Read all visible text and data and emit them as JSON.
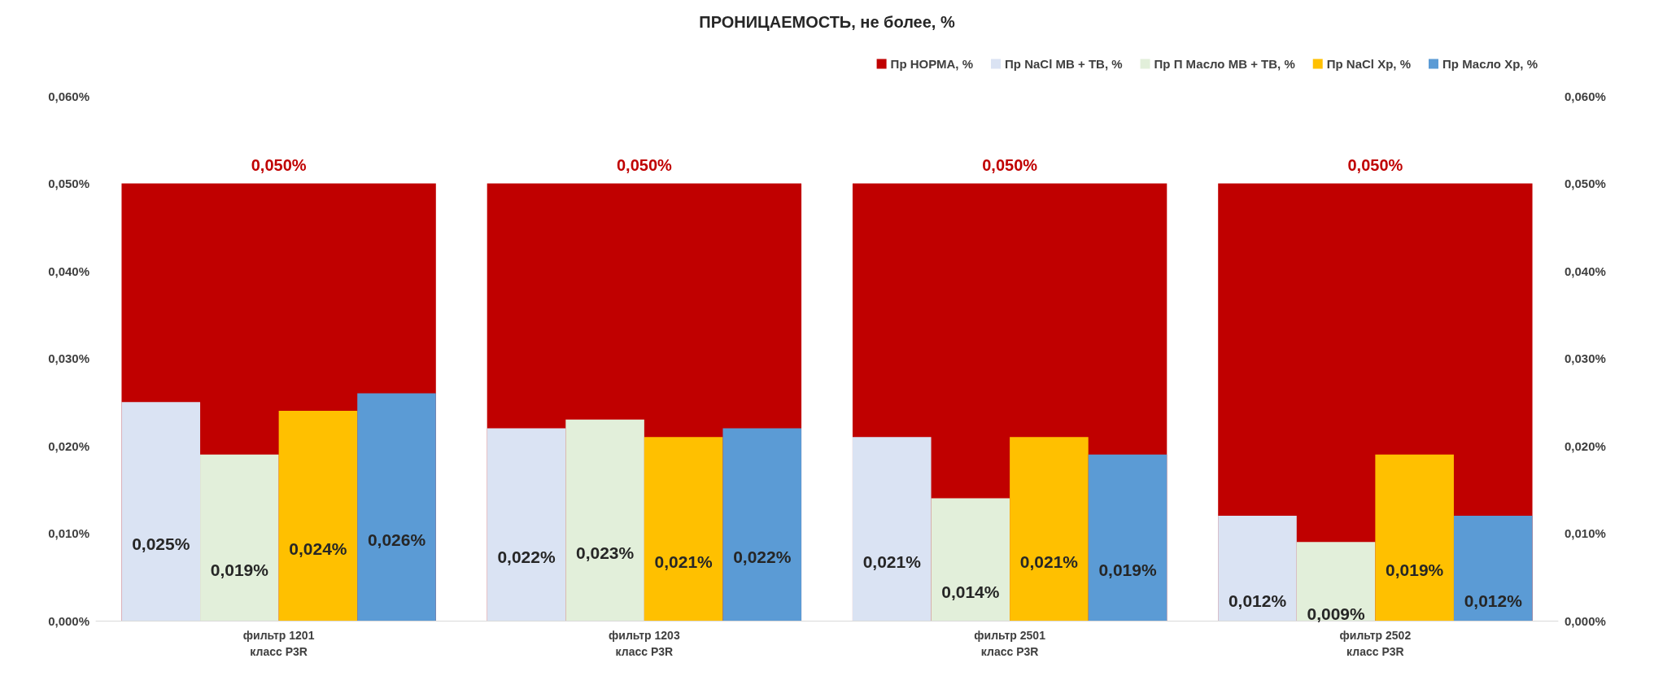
{
  "chart_data": {
    "type": "bar",
    "title": "ПРОНИЦАЕМОСТЬ, не более, %",
    "categories": [
      "фильтр 1201\nкласс P3R",
      "фильтр 1203\nкласс P3R",
      "фильтр 2501\nкласс P3R",
      "фильтр 2502\nкласс P3R"
    ],
    "series": [
      {
        "name": "Пр НОРМА, %",
        "color": "#c00000",
        "axis": "y2",
        "values": [
          0.05,
          0.05,
          0.05,
          0.05
        ],
        "value_labels": [
          "0,050%",
          "0,050%",
          "0,050%",
          "0,050%"
        ]
      },
      {
        "name": "Пр NaCl МВ + ТВ, %",
        "color": "#dae3f3",
        "values": [
          0.025,
          0.022,
          0.021,
          0.012
        ],
        "value_labels": [
          "0,025%",
          "0,022%",
          "0,021%",
          "0,012%"
        ]
      },
      {
        "name": "Пр П Масло МВ + ТВ, %",
        "color": "#e2efda",
        "values": [
          0.019,
          0.023,
          0.014,
          0.009
        ],
        "value_labels": [
          "0,019%",
          "0,023%",
          "0,014%",
          "0,009%"
        ]
      },
      {
        "name": "Пр NaCl Хр, %",
        "color": "#ffc000",
        "values": [
          0.024,
          0.021,
          0.021,
          0.019
        ],
        "value_labels": [
          "0,024%",
          "0,021%",
          "0,021%",
          "0,019%"
        ]
      },
      {
        "name": "Пр Масло Хр, %",
        "color": "#5b9bd5",
        "values": [
          0.026,
          0.022,
          0.019,
          0.012
        ],
        "value_labels": [
          "0,026%",
          "0,022%",
          "0,019%",
          "0,012%"
        ]
      }
    ],
    "ylim": [
      0,
      0.06
    ],
    "yticks": [
      {
        "value": 0,
        "label": "0,000%"
      },
      {
        "value": 0.01,
        "label": "0,010%"
      },
      {
        "value": 0.02,
        "label": "0,020%"
      },
      {
        "value": 0.03,
        "label": "0,030%"
      },
      {
        "value": 0.04,
        "label": "0,040%"
      },
      {
        "value": 0.05,
        "label": "0,050%"
      },
      {
        "value": 0.06,
        "label": "0,060%"
      }
    ],
    "y2lim": [
      0,
      0.06
    ],
    "y2ticks": [
      {
        "value": 0,
        "label": "0,000%"
      },
      {
        "value": 0.01,
        "label": "0,010%"
      },
      {
        "value": 0.02,
        "label": "0,020%"
      },
      {
        "value": 0.03,
        "label": "0,030%"
      },
      {
        "value": 0.04,
        "label": "0,040%"
      },
      {
        "value": 0.05,
        "label": "0,050%"
      },
      {
        "value": 0.06,
        "label": "0,060%"
      }
    ],
    "legend": "top right",
    "grid": false
  }
}
